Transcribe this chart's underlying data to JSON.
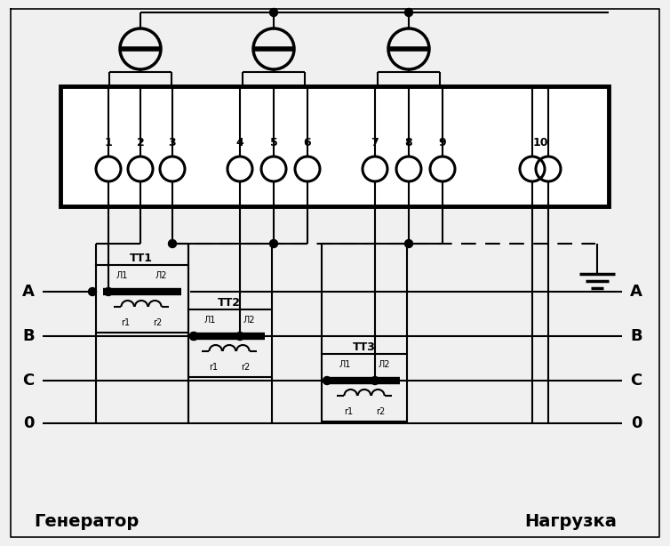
{
  "bg_color": "#f0f0f0",
  "line_color": "#000000",
  "generator_label": "Генератор",
  "load_label": "Нагрузка",
  "phase_labels_left": [
    "A",
    "B",
    "C",
    "0"
  ],
  "phase_labels_right": [
    "A",
    "B",
    "C",
    "0"
  ],
  "terminal_labels": [
    "1",
    "2",
    "3",
    "4",
    "5",
    "6",
    "7",
    "8",
    "9",
    "10"
  ],
  "tt_labels": [
    "ТТ1",
    "ТТ2",
    "ТТ3"
  ],
  "figsize": [
    7.54,
    6.14
  ],
  "dpi": 100
}
